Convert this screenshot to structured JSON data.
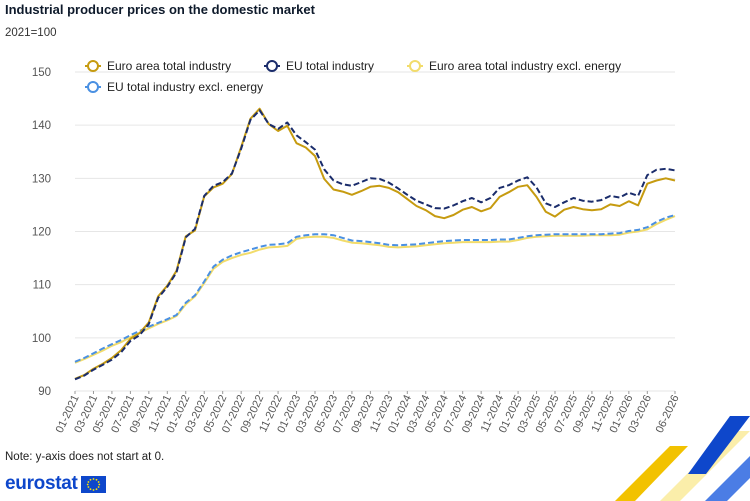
{
  "header": {
    "title": "Industrial producer prices on the domestic market",
    "subtitle": "2021=100"
  },
  "footer": {
    "note": "Note: y-axis does not start at 0.",
    "logo_text": "eurostat"
  },
  "colors": {
    "euro_area": "#c69b10",
    "eu": "#1a2c6b",
    "euro_area_excl": "#f2dc6b",
    "eu_excl": "#4a90e2",
    "axis_text": "#555555",
    "grid": "#e6e6e6"
  },
  "chart_data": {
    "type": "line",
    "title": "Industrial producer prices on the domestic market",
    "subtitle": "2021=100",
    "ylim": [
      90,
      150
    ],
    "yticks": [
      90,
      100,
      110,
      120,
      130,
      140,
      150
    ],
    "grid": "horizontal",
    "legend_placement": "top-left",
    "x": [
      "01-2021",
      "02-2021",
      "03-2021",
      "04-2021",
      "05-2021",
      "06-2021",
      "07-2021",
      "08-2021",
      "09-2021",
      "10-2021",
      "11-2021",
      "12-2021",
      "01-2022",
      "02-2022",
      "03-2022",
      "04-2022",
      "05-2022",
      "06-2022",
      "07-2022",
      "08-2022",
      "09-2022",
      "10-2022",
      "11-2022",
      "12-2022",
      "01-2023",
      "02-2023",
      "03-2023",
      "04-2023",
      "05-2023",
      "06-2023",
      "07-2023",
      "08-2023",
      "09-2023",
      "10-2023",
      "11-2023",
      "12-2023",
      "01-2024",
      "02-2024",
      "03-2024",
      "04-2024",
      "05-2024",
      "06-2024",
      "07-2024",
      "08-2024",
      "09-2024",
      "10-2024",
      "11-2024",
      "12-2024",
      "01-2025",
      "02-2025",
      "03-2025",
      "04-2025",
      "05-2025",
      "06-2025",
      "07-2025",
      "08-2025",
      "09-2025",
      "10-2025",
      "11-2025",
      "12-2025",
      "01-2026",
      "02-2026",
      "03-2026",
      "04-2026",
      "05-2026",
      "06-2026"
    ],
    "xtick_labels": [
      "01-2021",
      "03-2021",
      "05-2021",
      "07-2021",
      "09-2021",
      "11-2021",
      "01-2022",
      "03-2022",
      "05-2022",
      "07-2022",
      "09-2022",
      "11-2022",
      "01-2023",
      "03-2023",
      "05-2023",
      "07-2023",
      "09-2023",
      "11-2023",
      "01-2024",
      "03-2024",
      "05-2024",
      "07-2024",
      "09-2024",
      "11-2024",
      "01-2025",
      "03-2025",
      "05-2025",
      "07-2025",
      "09-2025",
      "11-2025",
      "01-2026",
      "03-2026",
      "06-2026"
    ],
    "series": [
      {
        "name": "Euro area total industry",
        "color": "#c69b10",
        "dash": "solid",
        "values": [
          92.3,
          93.0,
          94.2,
          95.1,
          96.2,
          97.7,
          99.8,
          100.9,
          102.9,
          107.8,
          109.8,
          112.6,
          119.1,
          120.2,
          126.6,
          128.3,
          129.0,
          130.8,
          135.9,
          141.2,
          143.1,
          140.2,
          138.9,
          139.9,
          136.6,
          135.8,
          134.2,
          129.9,
          127.9,
          127.5,
          126.9,
          127.6,
          128.4,
          128.6,
          128.2,
          127.4,
          126.1,
          124.8,
          124.0,
          122.9,
          122.5,
          123.1,
          124.1,
          124.6,
          123.8,
          124.4,
          126.5,
          127.4,
          128.4,
          128.7,
          126.5,
          123.7,
          122.8,
          124.1,
          124.6,
          124.2,
          124.0,
          124.2,
          125.1,
          124.8,
          125.7,
          124.9,
          129.0,
          129.6,
          130.0,
          129.6
        ]
      },
      {
        "name": "EU total industry",
        "color": "#1a2c6b",
        "dash": "dashed",
        "values": [
          92.2,
          92.9,
          94.0,
          94.9,
          95.9,
          97.3,
          99.4,
          100.5,
          102.6,
          107.5,
          109.6,
          112.3,
          118.9,
          120.5,
          126.7,
          128.6,
          129.3,
          130.9,
          135.6,
          141.0,
          142.8,
          140.2,
          139.3,
          140.5,
          138.1,
          136.8,
          135.4,
          131.7,
          129.6,
          128.9,
          128.6,
          129.3,
          130.0,
          129.9,
          129.2,
          128.1,
          126.9,
          125.8,
          125.1,
          124.4,
          124.3,
          124.9,
          125.7,
          126.3,
          125.5,
          126.3,
          128.2,
          128.7,
          129.6,
          130.2,
          128.3,
          125.3,
          124.6,
          125.5,
          126.3,
          125.8,
          125.6,
          125.9,
          126.7,
          126.4,
          127.3,
          126.7,
          130.6,
          131.6,
          131.8,
          131.5
        ]
      },
      {
        "name": "Euro area total industry excl. energy",
        "color": "#f2dc6b",
        "dash": "solid",
        "values": [
          95.3,
          96.0,
          96.8,
          97.6,
          98.5,
          99.2,
          100.1,
          100.9,
          101.8,
          102.6,
          103.3,
          104.1,
          106.3,
          107.8,
          110.3,
          113.0,
          114.3,
          115.0,
          115.6,
          116.0,
          116.6,
          117.0,
          117.1,
          117.3,
          118.6,
          118.9,
          119.0,
          119.0,
          118.8,
          118.3,
          117.9,
          117.8,
          117.6,
          117.4,
          117.1,
          117.0,
          117.1,
          117.2,
          117.4,
          117.6,
          117.8,
          117.9,
          118.0,
          118.0,
          118.0,
          118.0,
          118.1,
          118.1,
          118.4,
          118.8,
          119.0,
          119.1,
          119.2,
          119.2,
          119.2,
          119.2,
          119.3,
          119.3,
          119.3,
          119.4,
          119.8,
          120.0,
          120.4,
          121.4,
          122.2,
          122.9
        ]
      },
      {
        "name": "EU total industry excl. energy",
        "color": "#4a90e2",
        "dash": "dashed",
        "values": [
          95.5,
          96.2,
          97.1,
          98.0,
          98.8,
          99.6,
          100.5,
          101.3,
          102.1,
          102.8,
          103.5,
          104.3,
          106.6,
          108.0,
          110.6,
          113.4,
          114.7,
          115.5,
          116.1,
          116.6,
          117.1,
          117.5,
          117.6,
          117.8,
          119.0,
          119.3,
          119.5,
          119.5,
          119.3,
          118.8,
          118.3,
          118.2,
          118.0,
          117.8,
          117.5,
          117.4,
          117.5,
          117.6,
          117.8,
          118.0,
          118.2,
          118.3,
          118.4,
          118.4,
          118.4,
          118.4,
          118.5,
          118.5,
          118.8,
          119.1,
          119.3,
          119.4,
          119.5,
          119.5,
          119.5,
          119.5,
          119.5,
          119.5,
          119.6,
          119.7,
          120.1,
          120.3,
          120.8,
          121.8,
          122.6,
          123.1
        ]
      }
    ]
  }
}
